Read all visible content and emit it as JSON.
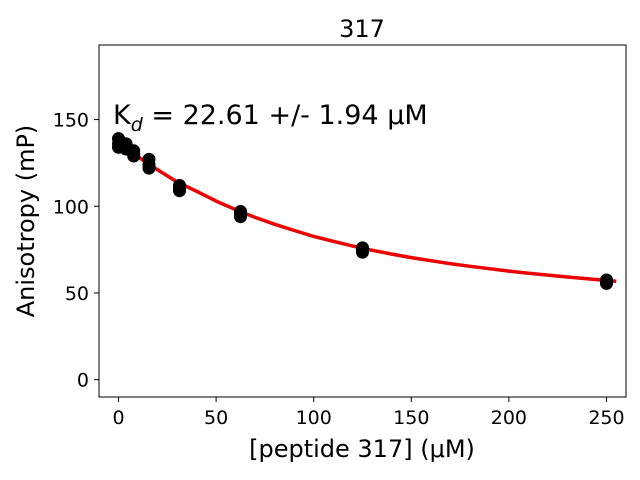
{
  "chart_data": {
    "type": "scatter",
    "title": "317",
    "xlabel": "[peptide 317] (μM)",
    "ylabel": "Anisotropy (mP)",
    "annotation": {
      "prefix": "K",
      "subscript": "d",
      "text": " = 22.61 +/- 1.94 μM"
    },
    "xlim": [
      -10,
      260
    ],
    "ylim": [
      -10,
      193
    ],
    "xticks": [
      0,
      50,
      100,
      150,
      200,
      250
    ],
    "yticks": [
      0,
      50,
      100,
      150
    ],
    "grid": false,
    "series": [
      {
        "kind": "points",
        "color": "#000000",
        "x": [
          0,
          0,
          0,
          3.9,
          3.9,
          3.9,
          7.8,
          7.8,
          7.8,
          15.6,
          15.6,
          15.6,
          31.25,
          31.25,
          31.25,
          62.5,
          62.5,
          62.5,
          125,
          125,
          125,
          250,
          250,
          250
        ],
        "y": [
          134,
          136,
          139,
          133,
          134,
          136,
          129,
          130,
          132,
          122,
          124,
          127,
          109,
          110,
          112,
          94,
          96,
          97,
          73.5,
          74.5,
          76,
          55.5,
          56.5,
          57.5
        ]
      },
      {
        "kind": "fit",
        "color": "#ee0000",
        "x": [
          0,
          10,
          20,
          30,
          40,
          50,
          60,
          70,
          80,
          90,
          100,
          110,
          120,
          130,
          140,
          150,
          160,
          170,
          180,
          190,
          200,
          210,
          220,
          230,
          240,
          250,
          255
        ],
        "y": [
          136.5,
          128.5,
          121,
          114,
          108.6,
          103,
          98,
          93.6,
          89.6,
          86,
          82.6,
          79.8,
          77,
          74.6,
          72.4,
          70.4,
          68.6,
          66.9,
          65.4,
          64,
          62.6,
          61.4,
          60.3,
          59.2,
          58.2,
          57.2,
          56.8
        ]
      }
    ]
  }
}
